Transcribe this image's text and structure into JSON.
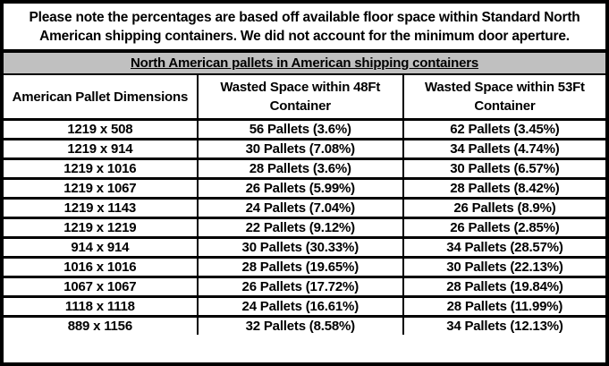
{
  "note": {
    "text": "Please note the percentages are based off available floor space within Standard North American shipping containers. We did not account for the minimum door aperture."
  },
  "table": {
    "title": "North American pallets in American shipping containers",
    "columns": [
      "American Pallet Dimensions",
      "Wasted Space within 48Ft Container",
      "Wasted Space within 53Ft Container"
    ],
    "rows": [
      [
        "1219 x 508",
        "56 Pallets (3.6%)",
        "62 Pallets (3.45%)"
      ],
      [
        "1219 x 914",
        "30 Pallets (7.08%)",
        "34 Pallets (4.74%)"
      ],
      [
        "1219 x 1016",
        "28 Pallets (3.6%)",
        "30 Pallets (6.57%)"
      ],
      [
        "1219 x 1067",
        "26 Pallets (5.99%)",
        "28 Pallets (8.42%)"
      ],
      [
        "1219 x 1143",
        "24 Pallets (7.04%)",
        "26 Pallets (8.9%)"
      ],
      [
        "1219 x 1219",
        "22 Pallets (9.12%)",
        "26 Pallets (2.85%)"
      ],
      [
        "914 x 914",
        "30 Pallets (30.33%)",
        "34 Pallets (28.57%)"
      ],
      [
        "1016 x 1016",
        "28 Pallets (19.65%)",
        "30 Pallets (22.13%)"
      ],
      [
        "1067 x 1067",
        "26 Pallets (17.72%)",
        "28 Pallets (19.84%)"
      ],
      [
        "1118 x 1118",
        "24 Pallets (16.61%)",
        "28 Pallets (11.99%)"
      ],
      [
        "889 x 1156",
        "32 Pallets (8.58%)",
        "34 Pallets (12.13%)"
      ]
    ]
  },
  "colors": {
    "band_bg": "#c0c0c0",
    "border": "#000000",
    "text": "#000000",
    "background": "#ffffff"
  }
}
